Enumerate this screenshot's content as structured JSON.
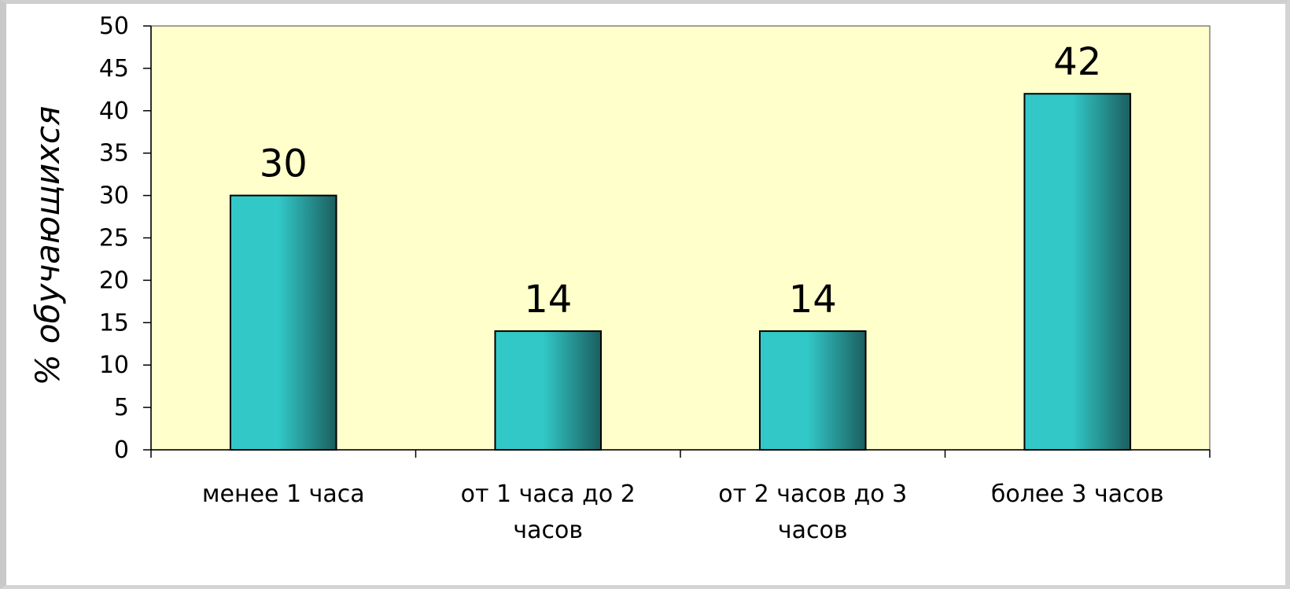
{
  "chart_data": {
    "type": "bar",
    "categories": [
      [
        "менее 1 часа"
      ],
      [
        "от 1 часа до 2",
        "часов"
      ],
      [
        "от 2 часов до 3",
        "часов"
      ],
      [
        "более 3 часов"
      ]
    ],
    "values": [
      30,
      14,
      14,
      42
    ],
    "ylabel": "% обучающихся",
    "ylim": [
      0,
      50
    ],
    "yticks": [
      0,
      5,
      10,
      15,
      20,
      25,
      30,
      35,
      40,
      45,
      50
    ],
    "grid": false,
    "legend": "none",
    "colors": {
      "plot_background": "#ffffcc",
      "bar_light": "#33c8c8",
      "bar_dark": "#1b5e5e",
      "bar_border": "#000000"
    }
  }
}
